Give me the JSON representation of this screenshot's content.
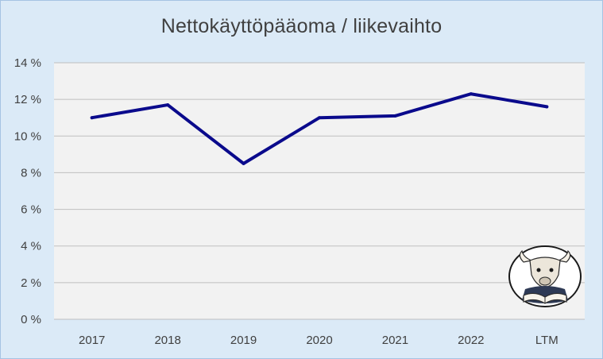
{
  "chart_data": {
    "type": "line",
    "title": "Nettokäyttöpääoma / liikevaihto",
    "xlabel": "",
    "ylabel": "",
    "categories": [
      "2017",
      "2018",
      "2019",
      "2020",
      "2021",
      "2022",
      "LTM"
    ],
    "series": [
      {
        "values": [
          11.0,
          11.7,
          8.5,
          11.0,
          11.1,
          12.3,
          11.6
        ]
      }
    ],
    "ylim": [
      0,
      14
    ],
    "yticks": [
      0,
      2,
      4,
      6,
      8,
      10,
      12,
      14
    ],
    "ytick_labels": [
      "0 %",
      "2 %",
      "4 %",
      "6 %",
      "8 %",
      "10 %",
      "12 %",
      "14 %"
    ],
    "grid": true,
    "legend": "none",
    "colors": {
      "line": "#0a0a8c",
      "plot_background": "#f2f2f2",
      "chart_background": "#dbeaf7",
      "gridline": "#bfbfbf"
    }
  },
  "logo": {
    "icon": "bull-reading-book-icon"
  }
}
